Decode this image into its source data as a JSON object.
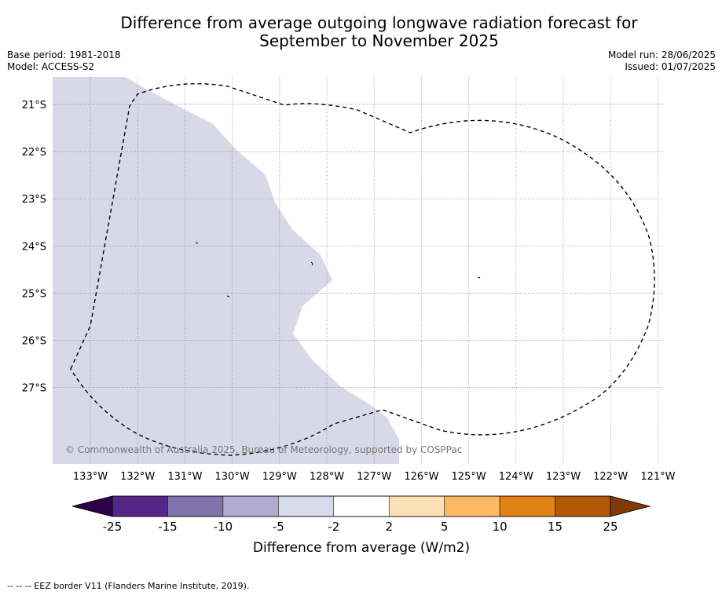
{
  "header": {
    "title_line1": "Difference from average outgoing longwave radiation forecast for",
    "title_line2": "September to November 2025",
    "base_period": "Base period: 1981-2018",
    "model": "Model: ACCESS-S2",
    "model_run": "Model run: 28/06/2025",
    "issued": "Issued: 01/07/2025"
  },
  "map": {
    "copyright": "© Commonwealth of Australia 2025, Bureau of Meteorology, supported by COSPPac",
    "lon_labels": [
      "133°W",
      "132°W",
      "131°W",
      "130°W",
      "129°W",
      "128°W",
      "127°W",
      "126°W",
      "125°W",
      "124°W",
      "123°W",
      "122°W",
      "121°W"
    ],
    "lat_labels": [
      "21°S",
      "22°S",
      "23°S",
      "24°S",
      "25°S",
      "26°S",
      "27°S"
    ],
    "colors": {
      "fill_minus5_minus2": "#d8d8e9",
      "eez_border": "#000000",
      "gridline": "#888888"
    }
  },
  "colorbar": {
    "title": "Difference from average (W/m2)",
    "tick_labels": [
      "-25",
      "-15",
      "-10",
      "-5",
      "-2",
      "2",
      "5",
      "10",
      "15",
      "25"
    ],
    "colors": [
      "#2d004b",
      "#542788",
      "#8073ac",
      "#b2abd2",
      "#d8daeb",
      "#ffffff",
      "#fee0b6",
      "#fdb863",
      "#e08214",
      "#b35806",
      "#7f3b08"
    ]
  },
  "footnote": "--  --  -- EEZ border V11 (Flanders Marine Institute, 2019)."
}
